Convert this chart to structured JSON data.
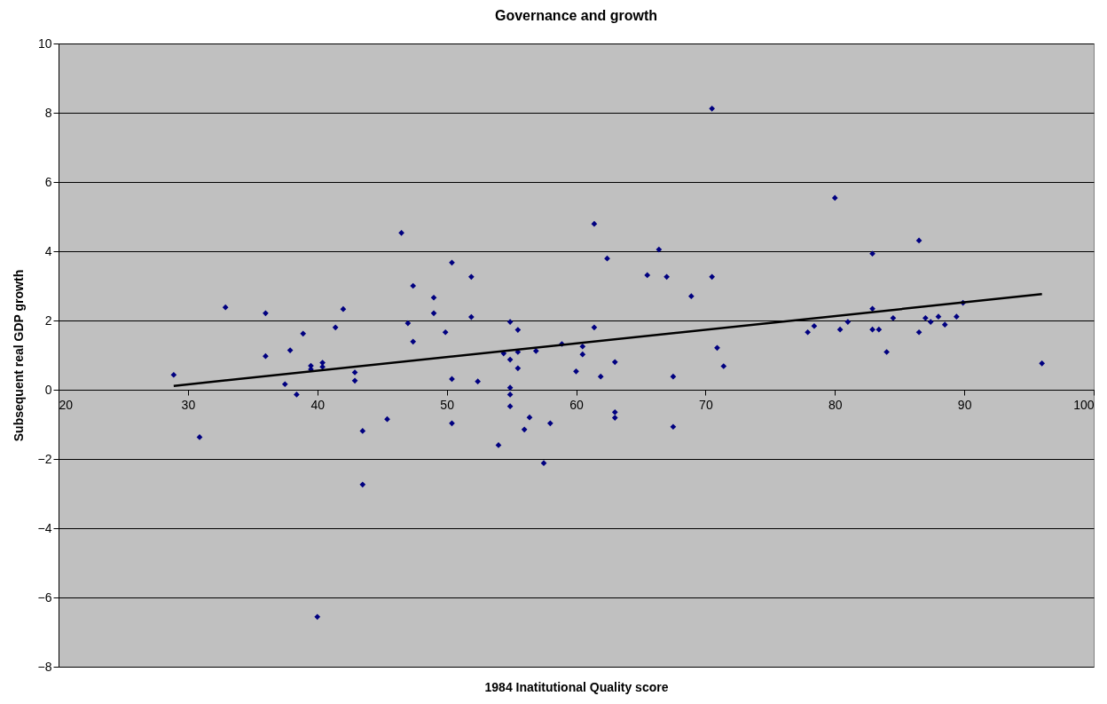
{
  "chart_data": {
    "type": "scatter",
    "title": "Governance and growth",
    "xlabel": "1984 Inatitutional Quality score",
    "ylabel": "Subsequent real GDP growth",
    "xlim": [
      20,
      100
    ],
    "xticks": [
      20,
      30,
      40,
      50,
      60,
      70,
      80,
      90,
      100
    ],
    "ylim": [
      -8,
      10
    ],
    "yticks": [
      -8,
      -6,
      -4,
      -2,
      0,
      2,
      4,
      6,
      8,
      10
    ],
    "grid": "y",
    "marker": "diamond",
    "series": [
      {
        "type": "scatter",
        "color": "#000080",
        "x": [
          28.9,
          30.9,
          32.9,
          36.0,
          36.0,
          37.5,
          37.9,
          38.4,
          38.9,
          39.5,
          39.5,
          40.4,
          40.4,
          41.4,
          42.0,
          42.9,
          42.9,
          43.5,
          43.5,
          45.4,
          46.5,
          47.0,
          47.4,
          47.4,
          49.0,
          49.0,
          49.9,
          50.4,
          50.4,
          50.4,
          51.9,
          51.9,
          52.4,
          54.0,
          54.4,
          54.9,
          54.9,
          54.9,
          54.9,
          54.9,
          55.5,
          55.5,
          55.5,
          56.0,
          56.4,
          56.9,
          57.5,
          58.0,
          58.9,
          60.0,
          60.5,
          60.5,
          61.4,
          61.4,
          61.9,
          62.4,
          63.0,
          63.0,
          63.0,
          65.5,
          66.4,
          67.0,
          67.5,
          67.5,
          68.9,
          70.5,
          70.5,
          70.9,
          71.4,
          40.0,
          77.9,
          78.4,
          80.0,
          80.4,
          81.0,
          82.9,
          82.9,
          82.9,
          83.4,
          84.0,
          84.5,
          86.5,
          86.5,
          87.0,
          87.4,
          88.0,
          88.5,
          89.4,
          89.9,
          96.0
        ],
        "values": [
          0.43,
          -1.37,
          2.38,
          2.21,
          0.97,
          0.16,
          1.14,
          -0.14,
          1.62,
          0.69,
          0.59,
          0.78,
          0.66,
          1.8,
          2.33,
          0.5,
          0.26,
          -1.19,
          -2.74,
          -0.85,
          4.53,
          1.92,
          3.0,
          1.39,
          2.66,
          2.21,
          1.66,
          3.67,
          0.31,
          -0.97,
          3.26,
          2.1,
          0.24,
          -1.6,
          1.05,
          1.96,
          0.87,
          0.06,
          -0.14,
          -0.48,
          1.73,
          1.09,
          0.62,
          -1.15,
          -0.8,
          1.12,
          -2.12,
          -0.97,
          1.32,
          0.53,
          1.25,
          1.02,
          4.79,
          1.8,
          0.38,
          3.79,
          0.8,
          -0.65,
          -0.81,
          3.31,
          4.05,
          3.26,
          0.38,
          -1.07,
          2.7,
          8.12,
          3.26,
          1.21,
          0.68,
          -6.56,
          1.66,
          1.84,
          5.54,
          1.74,
          1.96,
          3.93,
          2.34,
          1.74,
          1.74,
          1.09,
          2.07,
          4.31,
          1.66,
          2.07,
          1.96,
          2.11,
          1.88,
          2.11,
          2.51,
          0.76
        ]
      },
      {
        "type": "line",
        "color": "#000000",
        "line_style": "solid",
        "marker": "none",
        "x": [
          28.9,
          96.0
        ],
        "values": [
          0.11,
          2.76
        ]
      }
    ]
  }
}
